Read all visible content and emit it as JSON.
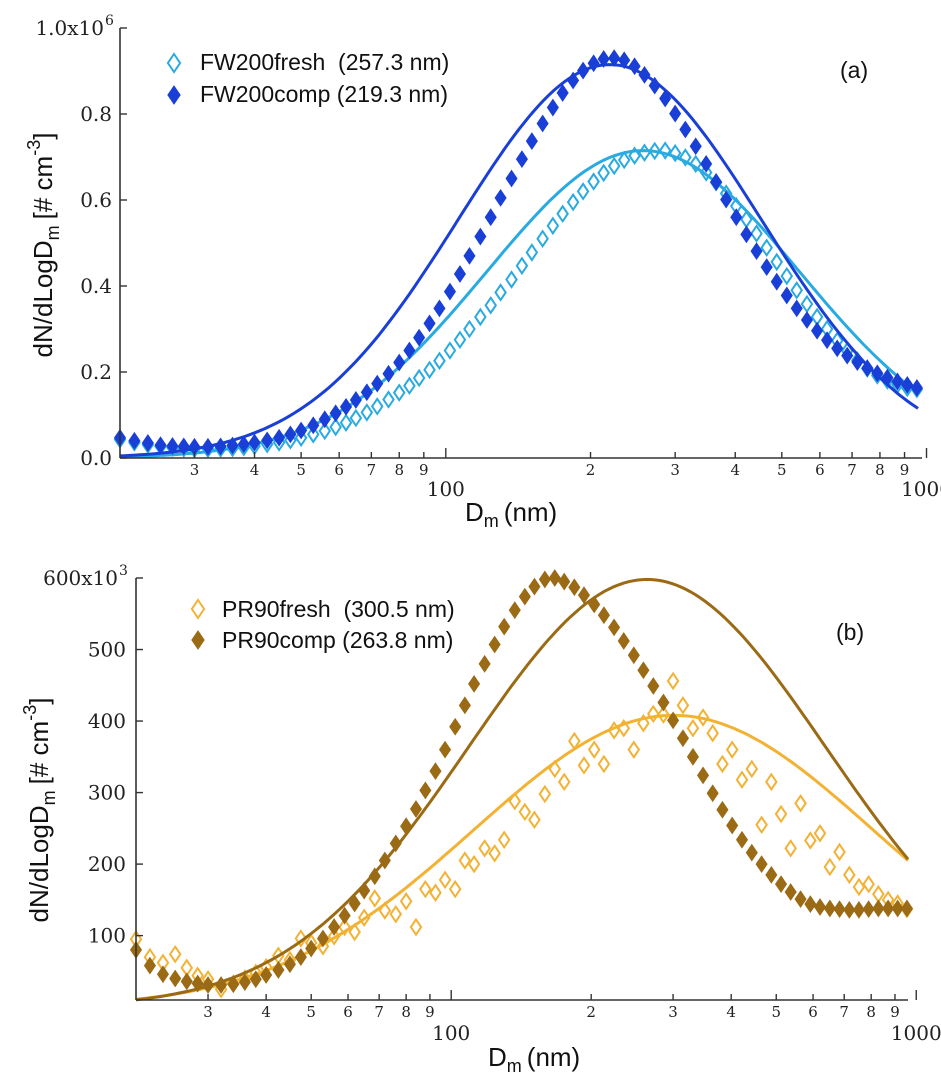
{
  "chart_data": [
    {
      "panel_label": "(a)",
      "type": "scatter",
      "xscale": "log",
      "xlim": [
        21,
        960
      ],
      "ylim": [
        0,
        1000000
      ],
      "xlabel": "D",
      "xlabel_sub": "m",
      "xlabel_unit": "(nm)",
      "ylabel": "dN/dLogD",
      "ylabel_sub": "m",
      "ylabel_unit": "[# cm",
      "ylabel_exp": "-3",
      "ylabel_close": "]",
      "yticks": [
        {
          "value": 0,
          "label": "0.0"
        },
        {
          "value": 200000,
          "label": "0.2"
        },
        {
          "value": 400000,
          "label": "0.4"
        },
        {
          "value": 600000,
          "label": "0.6"
        },
        {
          "value": 800000,
          "label": "0.8"
        },
        {
          "value": 1000000,
          "label": "1.0x10",
          "exp": "6"
        }
      ],
      "xticks_major": [
        {
          "value": 100,
          "label": "100"
        },
        {
          "value": 1000,
          "label": "1000"
        }
      ],
      "xticks_minor": [
        {
          "value": 30,
          "label": "3"
        },
        {
          "value": 40,
          "label": "4"
        },
        {
          "value": 50,
          "label": "5"
        },
        {
          "value": 60,
          "label": "6"
        },
        {
          "value": 70,
          "label": "7"
        },
        {
          "value": 80,
          "label": "8"
        },
        {
          "value": 90,
          "label": "9"
        },
        {
          "value": 200,
          "label": "2"
        },
        {
          "value": 300,
          "label": "3"
        },
        {
          "value": 400,
          "label": "4"
        },
        {
          "value": 500,
          "label": "5"
        },
        {
          "value": 600,
          "label": "6"
        },
        {
          "value": 700,
          "label": "7"
        },
        {
          "value": 800,
          "label": "8"
        },
        {
          "value": 900,
          "label": "9"
        }
      ],
      "legend_position": "top-left",
      "series": [
        {
          "name": "FW200fresh  (257.3 nm)",
          "color": "#29aae1",
          "marker": "open-diamond",
          "fit": {
            "peak": 715000,
            "mode_nm": 257.3,
            "sigma": 0.325
          },
          "x": [
            21,
            22.5,
            24,
            25.5,
            27,
            28.5,
            30,
            32,
            34,
            36,
            38,
            40,
            42.5,
            45,
            47.5,
            50,
            53,
            56,
            59,
            62,
            65,
            68.5,
            72,
            76,
            80,
            84,
            88,
            92.5,
            97,
            102,
            107,
            112,
            118,
            124,
            130,
            137,
            144,
            151,
            159,
            167,
            175,
            184,
            193,
            203,
            213,
            224,
            235,
            247,
            259,
            272,
            286,
            300,
            315,
            331,
            348,
            365,
            383,
            402,
            422,
            443,
            465,
            488,
            512,
            537,
            564,
            592,
            621,
            652,
            684,
            718,
            753,
            790,
            829,
            870,
            912,
            955
          ],
          "y": [
            43000,
            36000,
            31000,
            27000,
            24000,
            22000,
            21000,
            21000,
            22000,
            23000,
            25000,
            28000,
            32000,
            36000,
            41000,
            47000,
            55000,
            63000,
            72000,
            82000,
            93000,
            106000,
            120000,
            136000,
            152000,
            168000,
            186000,
            205000,
            226000,
            250000,
            275000,
            300000,
            328000,
            355000,
            385000,
            415000,
            447000,
            478000,
            510000,
            540000,
            568000,
            595000,
            620000,
            643000,
            663000,
            679000,
            693000,
            703000,
            710000,
            714000,
            715000,
            709000,
            699000,
            684000,
            664000,
            641000,
            615000,
            586000,
            555000,
            522000,
            489000,
            456000,
            423000,
            390000,
            358000,
            328000,
            300000,
            273000,
            249000,
            227000,
            208000,
            192000,
            180000,
            170000,
            163000,
            160000
          ]
        },
        {
          "name": "FW200comp (219.3 nm)",
          "color": "#1a3fd6",
          "marker": "filled-diamond",
          "fit": {
            "peak": 915000,
            "mode_nm": 219.3,
            "sigma": 0.315
          },
          "x": [
            21,
            22.5,
            24,
            25.5,
            27,
            28.5,
            30,
            32,
            34,
            36,
            38,
            40,
            42.5,
            45,
            47.5,
            50,
            53,
            56,
            59,
            62,
            65,
            68.5,
            72,
            76,
            80,
            84,
            88,
            92.5,
            97,
            102,
            107,
            112,
            118,
            124,
            130,
            137,
            144,
            151,
            159,
            167,
            175,
            184,
            193,
            203,
            213,
            224,
            235,
            247,
            259,
            272,
            286,
            300,
            315,
            331,
            348,
            365,
            383,
            402,
            422,
            443,
            465,
            488,
            512,
            537,
            564,
            592,
            621,
            652,
            684,
            718,
            753,
            790,
            829,
            870,
            912,
            955
          ],
          "y": [
            47000,
            40000,
            35000,
            30000,
            28000,
            27000,
            26000,
            26000,
            27000,
            29000,
            32000,
            36000,
            41000,
            47000,
            55000,
            64000,
            76000,
            90000,
            104000,
            119000,
            135000,
            153000,
            173000,
            196000,
            222000,
            250000,
            280000,
            313000,
            348000,
            387000,
            428000,
            470000,
            515000,
            560000,
            605000,
            650000,
            695000,
            737000,
            778000,
            815000,
            849000,
            878000,
            901000,
            918000,
            928000,
            930000,
            925000,
            911000,
            891000,
            866000,
            836000,
            801000,
            764000,
            725000,
            684000,
            642000,
            601000,
            560000,
            520000,
            481000,
            444000,
            410000,
            378000,
            348000,
            321000,
            296000,
            274000,
            255000,
            238000,
            223000,
            209000,
            197000,
            187000,
            178000,
            170000,
            163000
          ]
        }
      ]
    },
    {
      "panel_label": "(b)",
      "type": "scatter",
      "xscale": "log",
      "xlim": [
        21,
        960
      ],
      "ylim": [
        10000,
        600000
      ],
      "xlabel": "D",
      "xlabel_sub": "m",
      "xlabel_unit": "(nm)",
      "ylabel": "dN/dLogD",
      "ylabel_sub": "m",
      "ylabel_unit": "[# cm",
      "ylabel_exp": "-3",
      "ylabel_close": "]",
      "yticks": [
        {
          "value": 100000,
          "label": "100"
        },
        {
          "value": 200000,
          "label": "200"
        },
        {
          "value": 300000,
          "label": "300"
        },
        {
          "value": 400000,
          "label": "400"
        },
        {
          "value": 500000,
          "label": "500"
        },
        {
          "value": 600000,
          "label": "600x10",
          "exp": "3"
        }
      ],
      "xticks_major": [
        {
          "value": 100,
          "label": "100"
        },
        {
          "value": 1000,
          "label": "1000"
        }
      ],
      "xticks_minor": [
        {
          "value": 30,
          "label": "3"
        },
        {
          "value": 40,
          "label": "4"
        },
        {
          "value": 50,
          "label": "5"
        },
        {
          "value": 60,
          "label": "6"
        },
        {
          "value": 70,
          "label": "7"
        },
        {
          "value": 80,
          "label": "8"
        },
        {
          "value": 90,
          "label": "9"
        },
        {
          "value": 200,
          "label": "2"
        },
        {
          "value": 300,
          "label": "3"
        },
        {
          "value": 400,
          "label": "4"
        },
        {
          "value": 500,
          "label": "5"
        },
        {
          "value": 600,
          "label": "6"
        },
        {
          "value": 700,
          "label": "7"
        },
        {
          "value": 800,
          "label": "8"
        },
        {
          "value": 900,
          "label": "9"
        }
      ],
      "legend_position": "top-left",
      "series": [
        {
          "name": "PR90fresh  (300.5 nm)",
          "color": "#f2b234",
          "marker": "open-diamond",
          "fit": {
            "peak": 408000,
            "mode_nm": 300.5,
            "sigma": 0.43
          },
          "x": [
            21,
            22.5,
            24,
            25.5,
            27,
            28.5,
            30,
            32,
            34,
            36,
            38,
            40,
            42.5,
            45,
            47.5,
            50,
            53,
            56,
            59,
            62,
            65,
            68.5,
            72,
            76,
            80,
            84,
            88,
            92.5,
            97,
            102,
            107,
            112,
            118,
            124,
            130,
            137,
            144,
            151,
            159,
            167,
            175,
            184,
            193,
            203,
            213,
            224,
            235,
            247,
            259,
            272,
            286,
            300,
            315,
            331,
            348,
            365,
            383,
            402,
            422,
            443,
            465,
            488,
            512,
            537,
            564,
            592,
            621,
            652,
            684,
            718,
            753,
            790,
            829,
            870,
            912,
            955
          ],
          "y": [
            95000,
            70000,
            62000,
            74000,
            55000,
            44000,
            39000,
            25000,
            33000,
            40000,
            48000,
            56000,
            72000,
            66000,
            96000,
            90000,
            85000,
            99000,
            112000,
            105000,
            125000,
            152000,
            135000,
            130000,
            148000,
            112000,
            165000,
            160000,
            178000,
            165000,
            205000,
            200000,
            222000,
            215000,
            234000,
            288000,
            273000,
            262000,
            298000,
            333000,
            315000,
            372000,
            338000,
            360000,
            340000,
            387000,
            390000,
            360000,
            397000,
            410000,
            409000,
            456000,
            422000,
            390000,
            405000,
            383000,
            340000,
            360000,
            318000,
            333000,
            255000,
            315000,
            270000,
            222000,
            285000,
            233000,
            243000,
            196000,
            217000,
            185000,
            168000,
            172000,
            158000,
            150000,
            145000,
            137000
          ]
        },
        {
          "name": "PR90comp (263.8 nm)",
          "color": "#9b6a14",
          "marker": "filled-diamond",
          "fit": {
            "peak": 598000,
            "mode_nm": 263.8,
            "sigma": 0.385
          },
          "x": [
            21,
            22.5,
            24,
            25.5,
            27,
            28.5,
            30,
            32,
            34,
            36,
            38,
            40,
            42.5,
            45,
            47.5,
            50,
            53,
            56,
            59,
            62,
            65,
            68.5,
            72,
            76,
            80,
            84,
            88,
            92.5,
            97,
            102,
            107,
            112,
            118,
            124,
            130,
            137,
            144,
            151,
            159,
            167,
            175,
            184,
            193,
            203,
            213,
            224,
            235,
            247,
            259,
            272,
            286,
            300,
            315,
            331,
            348,
            365,
            383,
            402,
            422,
            443,
            465,
            488,
            512,
            537,
            564,
            592,
            621,
            652,
            684,
            718,
            753,
            790,
            829,
            870,
            912,
            955
          ],
          "y": [
            80000,
            58000,
            46000,
            40000,
            36000,
            33000,
            31000,
            31000,
            32000,
            35000,
            39000,
            45000,
            52000,
            60000,
            70000,
            82000,
            96000,
            112000,
            128000,
            145000,
            163000,
            183000,
            205000,
            229000,
            253000,
            277000,
            303000,
            330000,
            360000,
            392000,
            422000,
            452000,
            480000,
            507000,
            532000,
            555000,
            574000,
            588000,
            598000,
            600000,
            595000,
            587000,
            576000,
            563000,
            548000,
            531000,
            512000,
            492000,
            471000,
            449000,
            426000,
            401000,
            376000,
            350000,
            324000,
            299000,
            276000,
            254000,
            234000,
            216000,
            200000,
            185000,
            172000,
            161000,
            151000,
            144000,
            140000,
            138000,
            137000,
            136000,
            136000,
            137000,
            138000,
            138000,
            138000,
            138000
          ]
        }
      ]
    }
  ]
}
